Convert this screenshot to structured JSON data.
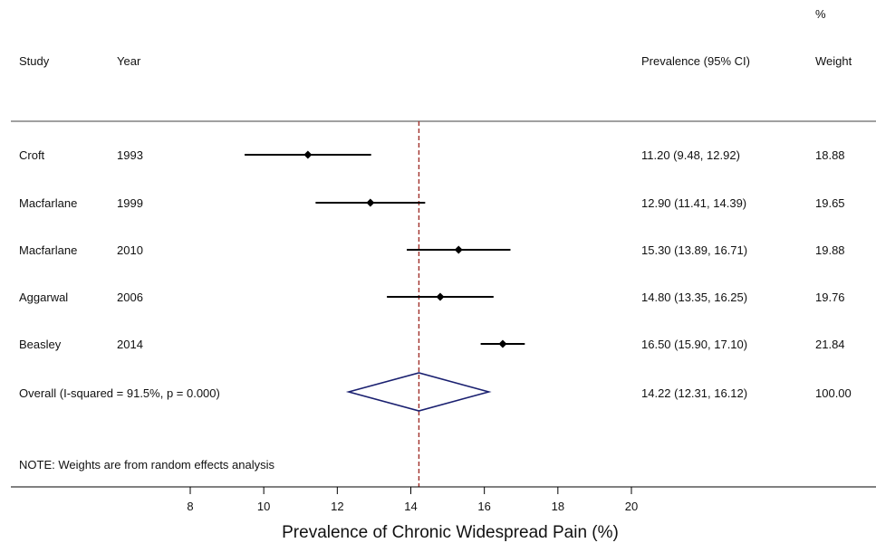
{
  "chart_data": {
    "type": "forest",
    "headers": {
      "study": "Study",
      "year": "Year",
      "estimate": "Prevalence (95% CI)",
      "weight_top": "%",
      "weight": "Weight"
    },
    "studies": [
      {
        "study": "Croft",
        "year": "1993",
        "estimate": 11.2,
        "lower": 9.48,
        "upper": 12.92,
        "ci_text": "11.20 (9.48, 12.92)",
        "weight": "18.88"
      },
      {
        "study": "Macfarlane",
        "year": "1999",
        "estimate": 12.9,
        "lower": 11.41,
        "upper": 14.39,
        "ci_text": "12.90 (11.41, 14.39)",
        "weight": "19.65"
      },
      {
        "study": "Macfarlane",
        "year": "2010",
        "estimate": 15.3,
        "lower": 13.89,
        "upper": 16.71,
        "ci_text": "15.30 (13.89, 16.71)",
        "weight": "19.88"
      },
      {
        "study": "Aggarwal",
        "year": "2006",
        "estimate": 14.8,
        "lower": 13.35,
        "upper": 16.25,
        "ci_text": "14.80 (13.35, 16.25)",
        "weight": "19.76"
      },
      {
        "study": "Beasley",
        "year": "2014",
        "estimate": 16.5,
        "lower": 15.9,
        "upper": 17.1,
        "ci_text": "16.50 (15.90, 17.10)",
        "weight": "21.84"
      }
    ],
    "overall": {
      "label": "Overall  (I-squared = 91.5%, p = 0.000)",
      "estimate": 14.22,
      "lower": 12.31,
      "upper": 16.12,
      "ci_text": "14.22 (12.31, 16.12)",
      "weight": "100.00"
    },
    "note": "NOTE: Weights are from random effects analysis",
    "xlabel": "Prevalence of Chronic Widespread Pain (%)",
    "xticks": [
      "8",
      "10",
      "12",
      "14",
      "16",
      "18",
      "20"
    ],
    "xlim": [
      8,
      20
    ],
    "reference_line": 14.22,
    "colors": {
      "ci_line": "#000000",
      "point": "#000000",
      "diamond": "#1a2070",
      "reference": "#a0302a",
      "axis": "#000000"
    }
  }
}
